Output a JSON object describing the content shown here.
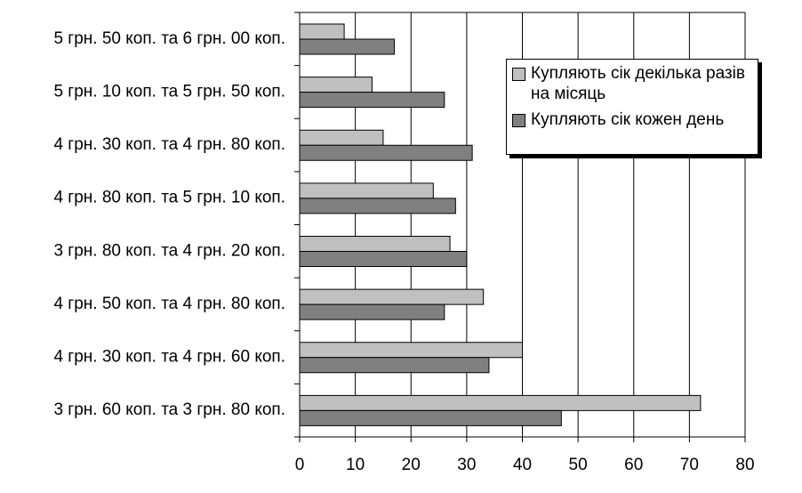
{
  "chart_data": {
    "type": "bar",
    "orientation": "horizontal",
    "categories": [
      "5 грн. 50 коп. та 6 грн. 00 коп.",
      "5 грн. 10 коп. та 5 грн. 50 коп.",
      "4 грн. 30 коп. та 4 грн. 80 коп.",
      "4 грн. 80 коп. та 5 грн. 10 коп.",
      "3 грн. 80 коп. та 4 грн. 20 коп.",
      "4 грн. 50 коп. та 4 грн. 80 коп.",
      "4 грн. 30 коп. та 4 грн. 60 коп.",
      "3 грн. 60 коп. та 3 грн. 80 коп."
    ],
    "series": [
      {
        "name": "Купляють сік декілька разів на місяць",
        "color": "#c0c0c0",
        "values": [
          8,
          13,
          15,
          24,
          27,
          33,
          40,
          72
        ]
      },
      {
        "name": "Купляють сік кожен день",
        "color": "#808080",
        "values": [
          17,
          26,
          31,
          28,
          30,
          26,
          34,
          47
        ]
      }
    ],
    "xlim": [
      0,
      80
    ],
    "xticks": [
      0,
      10,
      20,
      30,
      40,
      50,
      60,
      70,
      80
    ],
    "grid": true,
    "legend": "top-right"
  }
}
